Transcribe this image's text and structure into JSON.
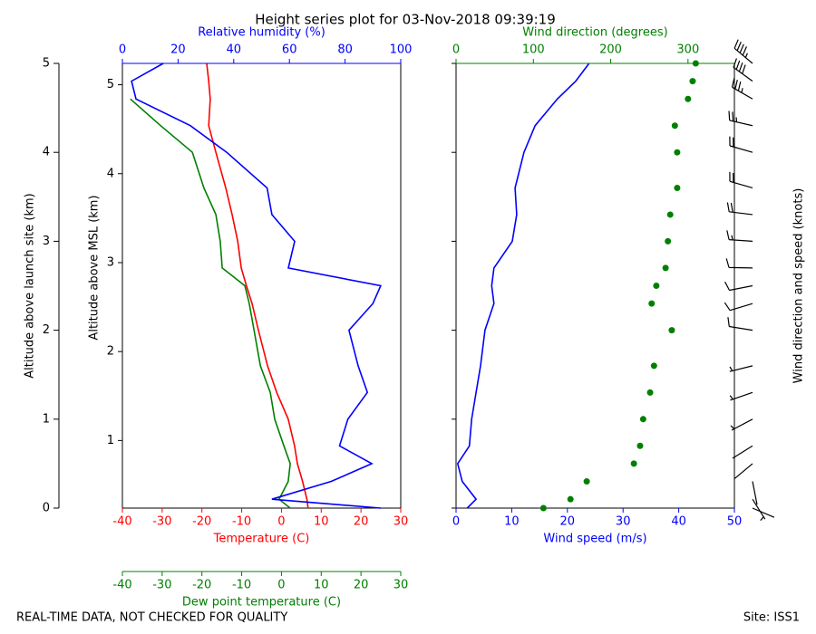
{
  "title": "Height series plot for 03-Nov-2018 09:39:19",
  "footer_left": "REAL-TIME DATA, NOT CHECKED FOR QUALITY",
  "footer_right": "Site: ISS1",
  "chart_data": [
    {
      "type": "line",
      "ylabel": "Altitude above launch site (km)",
      "y2label": "Altitude above MSL (km)",
      "altitude": [
        0,
        0.1,
        0.3,
        0.5,
        0.7,
        1.0,
        1.3,
        1.6,
        2.0,
        2.3,
        2.5,
        2.7,
        3.0,
        3.3,
        3.6,
        4.0,
        4.3,
        4.6,
        4.8,
        5.0
      ],
      "ylim": [
        0,
        5
      ],
      "yticks": [
        0,
        1,
        2,
        3,
        4,
        5
      ],
      "y2lim": [
        0.24,
        5.24
      ],
      "y2ticks": [
        1,
        2,
        3,
        4,
        5
      ],
      "series": [
        {
          "axis_label": "Temperature (C)",
          "color": "#ff0000",
          "axis": "bottom",
          "style": "line",
          "xlim": [
            -40,
            30
          ],
          "xticks": [
            -40,
            -30,
            -20,
            -10,
            0,
            10,
            20,
            30
          ],
          "values": [
            6.7,
            6.4,
            5.3,
            4,
            3.3,
            1.7,
            -1.2,
            -3.5,
            -5.8,
            -7.4,
            -8.8,
            -10.1,
            -11,
            -12.4,
            -14,
            -16.5,
            -18.3,
            -17.9,
            -18.3,
            -18.8
          ]
        },
        {
          "axis_label": "Dew point temperature (C)",
          "color": "#008000",
          "axis": "bottom-offset",
          "style": "line",
          "xlim": [
            -40,
            30
          ],
          "xticks": [
            -40,
            -30,
            -20,
            -10,
            0,
            10,
            20,
            30
          ],
          "values": [
            2.2,
            -0.6,
            1.7,
            2.2,
            0.6,
            -1.7,
            -2.8,
            -5.3,
            -6.9,
            -8.1,
            -9.2,
            -14.9,
            -15.4,
            -16.5,
            -19.5,
            -22.4,
            -30.4,
            -38,
            null,
            null
          ]
        },
        {
          "axis_label": "Relative humidity (%)",
          "color": "#0000ff",
          "axis": "top",
          "style": "line",
          "xlim": [
            0,
            100
          ],
          "xticks": [
            0,
            20,
            40,
            60,
            80,
            100
          ],
          "values": [
            92.8,
            53.7,
            75,
            89.6,
            78,
            81,
            88,
            84.7,
            81.4,
            90,
            92.8,
            59.6,
            61.9,
            53.7,
            52,
            37.5,
            24.4,
            4.9,
            3.3,
            14.7
          ]
        }
      ]
    },
    {
      "type": "line",
      "ylabel": "Wind direction and speed (knots)",
      "barbs": true,
      "altitude": [
        0,
        0.1,
        0.3,
        0.5,
        0.7,
        1.0,
        1.3,
        1.6,
        2.0,
        2.3,
        2.5,
        2.7,
        3.0,
        3.3,
        3.6,
        4.0,
        4.3,
        4.6,
        4.8,
        5.0
      ],
      "ylim": [
        0,
        5
      ],
      "yticks": [
        0,
        1,
        2,
        3,
        4,
        5
      ],
      "series": [
        {
          "axis_label": "Wind speed (m/s)",
          "color": "#0000ff",
          "axis": "bottom",
          "style": "line",
          "xlim": [
            0,
            50
          ],
          "xticks": [
            0,
            10,
            20,
            30,
            40,
            50
          ],
          "values": [
            2,
            3.6,
            1.1,
            0.3,
            2.4,
            2.8,
            3.6,
            4.4,
            5.2,
            6.8,
            6.4,
            6.8,
            10.1,
            10.9,
            10.6,
            12.2,
            14.2,
            18.2,
            21.5,
            23.9
          ]
        },
        {
          "axis_label": "Wind direction (degrees)",
          "color": "#008000",
          "axis": "top",
          "style": "dots",
          "xlim": [
            0,
            360
          ],
          "xticks": [
            0,
            100,
            200,
            300
          ],
          "values": [
            113,
            148,
            169,
            230,
            238,
            242,
            251,
            256,
            279,
            253,
            259,
            271,
            274,
            277,
            286,
            286,
            283,
            300,
            306,
            310
          ]
        }
      ]
    }
  ]
}
